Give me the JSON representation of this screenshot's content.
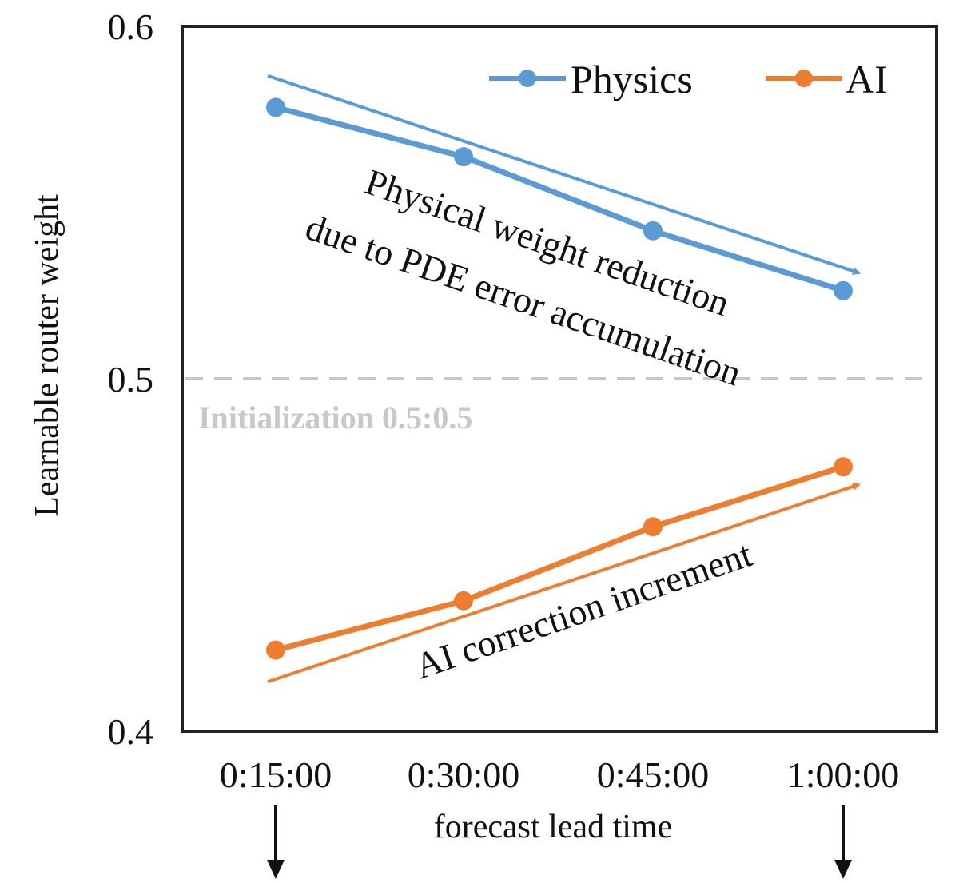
{
  "chart_data": {
    "type": "line",
    "title": "",
    "xlabel": "forecast lead time",
    "ylabel": "Learnable router weight",
    "categories": [
      "0:15:00",
      "0:30:00",
      "0:45:00",
      "1:00:00"
    ],
    "ylim": [
      0.4,
      0.6
    ],
    "yticks": [
      "0.4",
      "0.5",
      "0.6"
    ],
    "grid": false,
    "legend_position": "top-right",
    "series": [
      {
        "name": "Physics",
        "color": "#5b9bd5",
        "values": [
          0.577,
          0.563,
          0.542,
          0.525
        ]
      },
      {
        "name": "AI",
        "color": "#ed7d31",
        "values": [
          0.423,
          0.437,
          0.458,
          0.475
        ]
      }
    ],
    "reference_line": {
      "value": 0.5,
      "label": "Initialization 0.5:0.5",
      "color": "#c8c8c8",
      "style": "dashed"
    },
    "annotations": [
      {
        "text_line1": "Physical weight reduction",
        "text_line2": "due to PDE error accumulation",
        "series": "Physics"
      },
      {
        "text": "AI correction increment",
        "series": "AI"
      }
    ],
    "trend_arrows": [
      {
        "series": "Physics",
        "from": 0.586,
        "to": 0.53
      },
      {
        "series": "AI",
        "from": 0.414,
        "to": 0.47
      }
    ],
    "bottom_markers": {
      "categories": [
        "0:15:00",
        "1:00:00"
      ],
      "icon": "down-arrow-icon"
    }
  }
}
